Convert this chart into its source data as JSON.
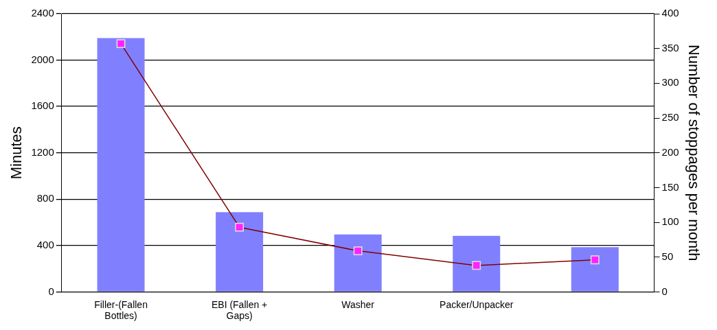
{
  "chart_data": {
    "type": "bar",
    "ylabel": "Minutes",
    "y2label": "Number of stoppages per month",
    "categories": [
      "Filler-(Fallen Bottles)",
      "EBI (Fallen + Gaps)",
      "Washer",
      "Packer/Unpacker",
      null
    ],
    "series": [
      {
        "color": "#8080ff",
        "values": [
          2190,
          687,
          495,
          483,
          385
        ]
      },
      {
        "type": "line",
        "axis": "y2",
        "color": "#800000",
        "marker": "square",
        "values": [
          357,
          93,
          59,
          38,
          46
        ]
      }
    ],
    "ylim": [
      0,
      2400
    ],
    "yticks": [
      0,
      400,
      800,
      1200,
      1600,
      2000,
      2400
    ],
    "y2lim": [
      0,
      400
    ],
    "y2ticks": [
      0,
      50,
      100,
      150,
      200,
      250,
      300,
      350,
      400
    ],
    "grid": "y",
    "legend": false
  }
}
